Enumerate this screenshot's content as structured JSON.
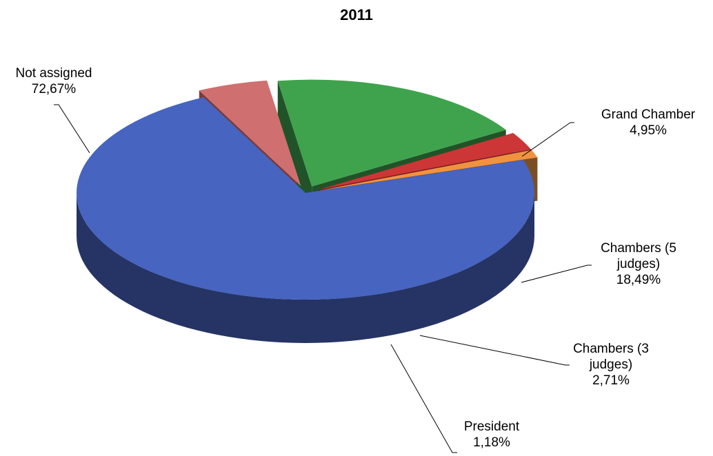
{
  "chart_data": {
    "type": "pie",
    "style": "3d-exploded",
    "title": "2011",
    "slices": [
      {
        "name": "Not assigned",
        "value": 72.67,
        "label": "72,67%",
        "color": "#4664C0",
        "side": "#253464"
      },
      {
        "name": "Grand Chamber",
        "value": 4.95,
        "label": "4,95%",
        "color": "#D06F6F",
        "side": "#7A3A3A"
      },
      {
        "name": "Chambers (5 judges)",
        "value": 18.49,
        "label": "18,49%",
        "color": "#3FA34D",
        "side": "#215328"
      },
      {
        "name": "Chambers (3 judges)",
        "value": 2.71,
        "label": "2,71%",
        "color": "#CC3636",
        "side": "#6A1A1E"
      },
      {
        "name": "President",
        "value": 1.18,
        "label": "1,18%",
        "color": "#F0923F",
        "side": "#7A4F24"
      }
    ]
  }
}
